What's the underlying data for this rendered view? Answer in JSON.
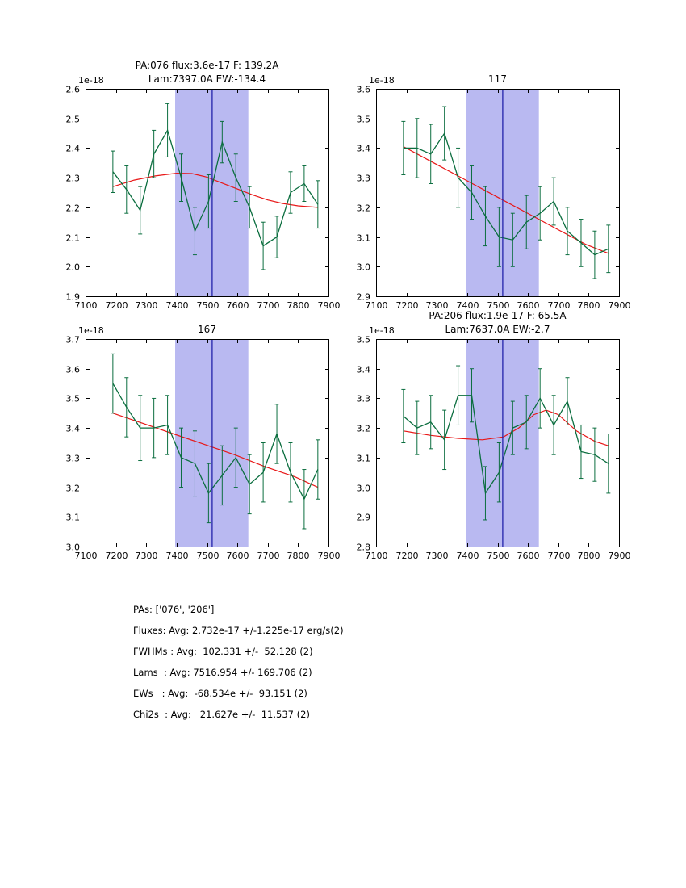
{
  "figure": {
    "background": "#ffffff"
  },
  "colors": {
    "data_line": "#0b6e3f",
    "fit_line": "#e81717",
    "vline": "#2222aa",
    "band": "#b9b9f1",
    "axis": "#000000"
  },
  "chart_data": [
    {
      "type": "line",
      "title_lines": [
        "PA:076 flux:3.6e-17 F: 139.2A",
        "Lam:7397.0A EW:-134.4"
      ],
      "offset_label": "1e-18",
      "xlim": [
        7100,
        7900
      ],
      "ylim": [
        1.9,
        2.6
      ],
      "xticks": [
        7100,
        7200,
        7300,
        7400,
        7500,
        7600,
        7700,
        7800,
        7900
      ],
      "yticks": [
        1.9,
        2.0,
        2.1,
        2.2,
        2.3,
        2.4,
        2.5,
        2.6
      ],
      "band": [
        7395,
        7636
      ],
      "vline": 7517,
      "x": [
        7190,
        7235,
        7280,
        7325,
        7370,
        7415,
        7460,
        7505,
        7550,
        7595,
        7640,
        7685,
        7730,
        7775,
        7820,
        7865
      ],
      "y": [
        2.32,
        2.26,
        2.19,
        2.38,
        2.46,
        2.3,
        2.12,
        2.22,
        2.42,
        2.3,
        2.2,
        2.07,
        2.1,
        2.25,
        2.28,
        2.21
      ],
      "yerr": [
        0.07,
        0.08,
        0.08,
        0.08,
        0.09,
        0.08,
        0.08,
        0.09,
        0.07,
        0.08,
        0.07,
        0.08,
        0.07,
        0.07,
        0.06,
        0.08
      ],
      "fit": {
        "x": [
          7190,
          7260,
          7330,
          7400,
          7450,
          7500,
          7550,
          7600,
          7650,
          7700,
          7750,
          7800,
          7865
        ],
        "y": [
          2.27,
          2.292,
          2.306,
          2.315,
          2.314,
          2.302,
          2.282,
          2.262,
          2.242,
          2.225,
          2.213,
          2.205,
          2.2
        ]
      }
    },
    {
      "type": "line",
      "title_lines": [
        "117"
      ],
      "offset_label": "1e-18",
      "xlim": [
        7100,
        7900
      ],
      "ylim": [
        2.9,
        3.6
      ],
      "xticks": [
        7100,
        7200,
        7300,
        7400,
        7500,
        7600,
        7700,
        7800,
        7900
      ],
      "yticks": [
        2.9,
        3.0,
        3.1,
        3.2,
        3.3,
        3.4,
        3.5,
        3.6
      ],
      "band": [
        7395,
        7636
      ],
      "vline": 7517,
      "x": [
        7190,
        7235,
        7280,
        7325,
        7370,
        7415,
        7460,
        7505,
        7550,
        7595,
        7640,
        7685,
        7730,
        7775,
        7820,
        7865
      ],
      "y": [
        3.4,
        3.4,
        3.38,
        3.45,
        3.3,
        3.25,
        3.17,
        3.1,
        3.09,
        3.15,
        3.18,
        3.22,
        3.12,
        3.08,
        3.04,
        3.06
      ],
      "yerr": [
        0.09,
        0.1,
        0.1,
        0.09,
        0.1,
        0.09,
        0.1,
        0.1,
        0.09,
        0.09,
        0.09,
        0.08,
        0.08,
        0.08,
        0.08,
        0.08
      ],
      "fit": {
        "x": [
          7190,
          7290,
          7390,
          7490,
          7590,
          7690,
          7790,
          7865
        ],
        "y": [
          3.405,
          3.35,
          3.295,
          3.24,
          3.185,
          3.13,
          3.075,
          3.045
        ]
      }
    },
    {
      "type": "line",
      "title_lines": [
        "167"
      ],
      "offset_label": "1e-18",
      "xlim": [
        7100,
        7900
      ],
      "ylim": [
        3.0,
        3.7
      ],
      "xticks": [
        7100,
        7200,
        7300,
        7400,
        7500,
        7600,
        7700,
        7800,
        7900
      ],
      "yticks": [
        3.0,
        3.1,
        3.2,
        3.3,
        3.4,
        3.5,
        3.6,
        3.7
      ],
      "band": [
        7395,
        7636
      ],
      "vline": 7517,
      "x": [
        7190,
        7235,
        7280,
        7325,
        7370,
        7415,
        7460,
        7505,
        7550,
        7595,
        7640,
        7685,
        7730,
        7775,
        7820,
        7865
      ],
      "y": [
        3.55,
        3.47,
        3.4,
        3.4,
        3.41,
        3.3,
        3.28,
        3.18,
        3.24,
        3.3,
        3.21,
        3.25,
        3.38,
        3.25,
        3.16,
        3.26
      ],
      "yerr": [
        0.1,
        0.1,
        0.11,
        0.1,
        0.1,
        0.1,
        0.11,
        0.1,
        0.1,
        0.1,
        0.1,
        0.1,
        0.1,
        0.1,
        0.1,
        0.1
      ],
      "fit": {
        "x": [
          7190,
          7290,
          7390,
          7490,
          7590,
          7690,
          7790,
          7865
        ],
        "y": [
          3.45,
          3.415,
          3.38,
          3.345,
          3.31,
          3.27,
          3.235,
          3.2
        ]
      }
    },
    {
      "type": "line",
      "title_lines": [
        "PA:206 flux:1.9e-17 F: 65.5A",
        "Lam:7637.0A EW:-2.7"
      ],
      "offset_label": "1e-18",
      "xlim": [
        7100,
        7900
      ],
      "ylim": [
        2.8,
        3.5
      ],
      "xticks": [
        7100,
        7200,
        7300,
        7400,
        7500,
        7600,
        7700,
        7800,
        7900
      ],
      "yticks": [
        2.8,
        2.9,
        3.0,
        3.1,
        3.2,
        3.3,
        3.4,
        3.5
      ],
      "band": [
        7395,
        7636
      ],
      "vline": 7517,
      "x": [
        7190,
        7235,
        7280,
        7325,
        7370,
        7415,
        7460,
        7505,
        7550,
        7595,
        7640,
        7685,
        7730,
        7775,
        7820,
        7865
      ],
      "y": [
        3.24,
        3.2,
        3.22,
        3.16,
        3.31,
        3.31,
        2.98,
        3.05,
        3.2,
        3.22,
        3.3,
        3.21,
        3.29,
        3.12,
        3.11,
        3.08
      ],
      "yerr": [
        0.09,
        0.09,
        0.09,
        0.1,
        0.1,
        0.09,
        0.09,
        0.1,
        0.09,
        0.09,
        0.1,
        0.1,
        0.08,
        0.09,
        0.09,
        0.1
      ],
      "fit": {
        "x": [
          7190,
          7280,
          7370,
          7450,
          7520,
          7570,
          7620,
          7660,
          7700,
          7760,
          7820,
          7865
        ],
        "y": [
          3.19,
          3.175,
          3.165,
          3.16,
          3.17,
          3.2,
          3.245,
          3.26,
          3.245,
          3.19,
          3.155,
          3.14
        ]
      }
    }
  ],
  "stats": {
    "lines": [
      "PAs: ['076', '206']",
      "Fluxes: Avg: 2.732e-17 +/-1.225e-17 erg/s(2)",
      "FWHMs : Avg:  102.331 +/-  52.128 (2)",
      "Lams  : Avg: 7516.954 +/- 169.706 (2)",
      "EWs   : Avg:  -68.534e +/-  93.151 (2)",
      "Chi2s  : Avg:   21.627e +/-  11.537 (2)"
    ]
  }
}
